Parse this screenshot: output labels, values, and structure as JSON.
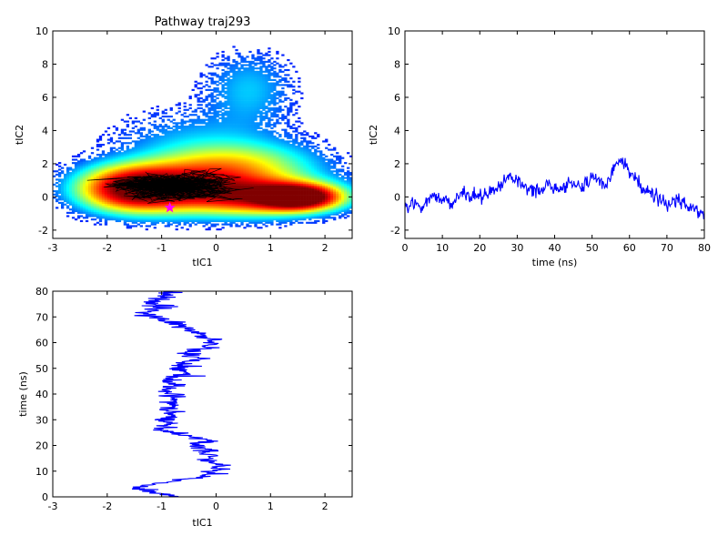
{
  "figure": {
    "title": "Pathway traj293"
  },
  "chart_data": [
    {
      "id": "density",
      "type": "heatmap",
      "title": "Pathway traj293",
      "xlabel": "tIC1",
      "ylabel": "tIC2",
      "xlim": [
        -3,
        2.5
      ],
      "ylim": [
        -2.5,
        10
      ],
      "xticks": [
        -3,
        -2,
        -1,
        0,
        1,
        2
      ],
      "yticks": [
        -2,
        0,
        2,
        4,
        6,
        8,
        10
      ],
      "colormap": "jet",
      "density_blobs": [
        {
          "cx": 1.5,
          "cy": 0.0,
          "sx": 0.45,
          "sy": 0.45,
          "w": 1.0
        },
        {
          "cx": 0.8,
          "cy": 0.1,
          "sx": 0.8,
          "sy": 0.7,
          "w": 0.6
        },
        {
          "cx": -1.5,
          "cy": 0.5,
          "sx": 0.6,
          "sy": 0.8,
          "w": 0.75
        },
        {
          "cx": -0.6,
          "cy": 0.6,
          "sx": 0.8,
          "sy": 0.9,
          "w": 0.5
        },
        {
          "cx": 0.3,
          "cy": 1.8,
          "sx": 0.9,
          "sy": 0.9,
          "w": 0.3
        },
        {
          "cx": 0.6,
          "cy": 6.5,
          "sx": 0.5,
          "sy": 1.4,
          "w": 0.08
        },
        {
          "cx": -0.3,
          "cy": 3.5,
          "sx": 1.0,
          "sy": 1.2,
          "w": 0.06
        }
      ],
      "path": {
        "color": "#000000",
        "center": [
          -0.8,
          0.6
        ],
        "spread": [
          0.6,
          0.5
        ],
        "n": 900
      },
      "start_marker": {
        "x": -0.85,
        "y": -0.65,
        "color": "#ff00ff",
        "shape": "star"
      }
    },
    {
      "id": "tic2_time",
      "type": "line",
      "xlabel": "time (ns)",
      "ylabel": "tIC2",
      "xlim": [
        0,
        80
      ],
      "ylim": [
        -2.5,
        10
      ],
      "xticks": [
        0,
        10,
        20,
        30,
        40,
        50,
        60,
        70,
        80
      ],
      "yticks": [
        -2,
        0,
        2,
        4,
        6,
        8,
        10
      ],
      "color": "#0000ff",
      "series": [
        {
          "x": [
            0,
            2,
            4,
            6,
            8,
            10,
            12,
            14,
            16,
            18,
            20,
            22,
            24,
            26,
            28,
            30,
            32,
            34,
            36,
            38,
            40,
            42,
            44,
            46,
            48,
            50,
            52,
            54,
            56,
            58,
            60,
            62,
            64,
            66,
            68,
            70,
            72,
            74,
            76,
            78,
            80
          ],
          "y": [
            -0.8,
            -0.2,
            -0.6,
            -0.3,
            0.0,
            -0.2,
            -0.4,
            -0.1,
            0.2,
            0.0,
            0.1,
            0.2,
            0.4,
            0.8,
            1.2,
            1.0,
            0.6,
            0.4,
            0.6,
            0.8,
            0.6,
            0.5,
            0.8,
            0.7,
            0.7,
            1.2,
            1.0,
            0.8,
            1.8,
            2.2,
            1.4,
            1.0,
            0.4,
            0.2,
            0.0,
            -0.6,
            -0.2,
            -0.4,
            -0.6,
            -0.9,
            -1.0
          ]
        }
      ]
    },
    {
      "id": "tic1_time",
      "type": "line",
      "xlabel": "tIC1",
      "ylabel": "time (ns)",
      "xlim": [
        -3,
        2.5
      ],
      "ylim": [
        0,
        80
      ],
      "xticks": [
        -3,
        -2,
        -1,
        0,
        1,
        2
      ],
      "yticks": [
        0,
        10,
        20,
        30,
        40,
        50,
        60,
        70,
        80
      ],
      "color": "#0000ff",
      "series": [
        {
          "y": [
            0,
            2,
            4,
            6,
            8,
            10,
            12,
            14,
            16,
            18,
            20,
            22,
            24,
            26,
            28,
            30,
            32,
            34,
            36,
            38,
            40,
            42,
            44,
            46,
            48,
            50,
            52,
            54,
            56,
            58,
            60,
            62,
            64,
            66,
            68,
            70,
            72,
            74,
            76,
            78,
            80
          ],
          "x": [
            -0.8,
            -1.2,
            -1.4,
            -0.8,
            -0.2,
            0.0,
            0.1,
            -0.2,
            -0.1,
            -0.3,
            -0.4,
            -0.2,
            -0.6,
            -1.0,
            -0.8,
            -0.9,
            -0.8,
            -0.9,
            -0.8,
            -0.8,
            -0.8,
            -0.9,
            -0.8,
            -0.9,
            -0.6,
            -0.7,
            -0.6,
            -0.4,
            -0.5,
            -0.2,
            0.0,
            -0.2,
            -0.4,
            -0.6,
            -0.8,
            -1.1,
            -1.3,
            -1.0,
            -1.2,
            -0.9,
            -0.8
          ]
        }
      ]
    }
  ]
}
